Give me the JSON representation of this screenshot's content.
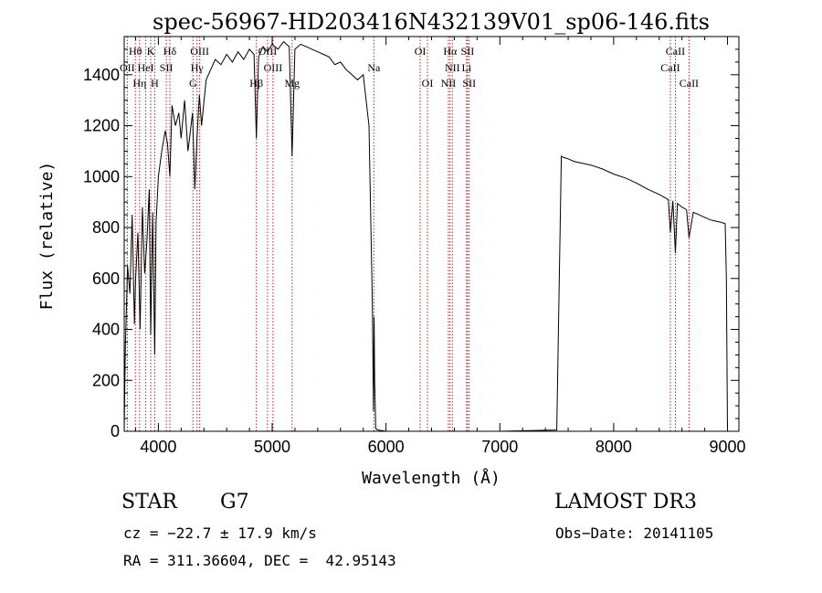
{
  "chart_data": {
    "type": "line",
    "title": "spec-56967-HD203416N432139V01_sp06-146.fits",
    "xlabel": "Wavelength (Å)",
    "ylabel": "Flux (relative)",
    "xlim": [
      3700,
      9100
    ],
    "ylim": [
      0,
      1550
    ],
    "xticks": [
      4000,
      5000,
      6000,
      7000,
      8000,
      9000
    ],
    "yticks": [
      0,
      200,
      400,
      600,
      800,
      1000,
      1200,
      1400
    ],
    "series": [
      {
        "name": "spectrum",
        "x": [
          3700,
          3710,
          3730,
          3750,
          3770,
          3790,
          3800,
          3820,
          3840,
          3860,
          3880,
          3900,
          3920,
          3933,
          3950,
          3968,
          3980,
          4000,
          4030,
          4060,
          4080,
          4101,
          4120,
          4150,
          4180,
          4200,
          4230,
          4260,
          4300,
          4320,
          4340,
          4360,
          4380,
          4420,
          4460,
          4500,
          4550,
          4600,
          4650,
          4700,
          4750,
          4800,
          4840,
          4861,
          4880,
          4920,
          4960,
          5000,
          5050,
          5100,
          5150,
          5175,
          5200,
          5250,
          5300,
          5350,
          5400,
          5450,
          5500,
          5550,
          5600,
          5650,
          5700,
          5750,
          5800,
          5850,
          5880,
          5890,
          5895,
          5900,
          5910,
          5930,
          6000,
          6500,
          7000,
          7500,
          7540,
          7560,
          7600,
          7650,
          7700,
          7800,
          7900,
          8000,
          8100,
          8200,
          8300,
          8400,
          8480,
          8498,
          8520,
          8542,
          8560,
          8600,
          8640,
          8662,
          8700,
          8750,
          8800,
          8850,
          8900,
          8950,
          8980,
          8990,
          9000
        ],
        "y": [
          0,
          320,
          650,
          540,
          850,
          420,
          600,
          780,
          400,
          880,
          620,
          750,
          950,
          380,
          860,
          300,
          820,
          1000,
          1100,
          1180,
          1130,
          1000,
          1280,
          1200,
          1250,
          1150,
          1300,
          1100,
          1250,
          950,
          1160,
          1320,
          1200,
          1380,
          1420,
          1460,
          1440,
          1480,
          1450,
          1490,
          1460,
          1500,
          1480,
          1150,
          1470,
          1510,
          1490,
          1520,
          1500,
          1530,
          1510,
          1080,
          1500,
          1520,
          1510,
          1500,
          1490,
          1480,
          1470,
          1440,
          1450,
          1420,
          1400,
          1380,
          1400,
          1200,
          500,
          80,
          450,
          200,
          10,
          5,
          0,
          0,
          0,
          5,
          1080,
          1075,
          1070,
          1060,
          1055,
          1045,
          1030,
          1010,
          995,
          975,
          950,
          930,
          910,
          780,
          905,
          700,
          895,
          880,
          870,
          760,
          860,
          850,
          840,
          830,
          825,
          820,
          815,
          600,
          0
        ]
      }
    ],
    "line_markers": [
      {
        "label": "Hθ",
        "wave": 3798,
        "row": 0
      },
      {
        "label": "OII",
        "wave": 3727,
        "row": 1
      },
      {
        "label": "Hη",
        "wave": 3835,
        "row": 2
      },
      {
        "label": "HeI",
        "wave": 3889,
        "row": 1
      },
      {
        "label": "K",
        "wave": 3933,
        "row": 0
      },
      {
        "label": "SII",
        "wave": 4070,
        "row": 1
      },
      {
        "label": "H",
        "wave": 3968,
        "row": 2
      },
      {
        "label": "Hδ",
        "wave": 4101,
        "row": 0
      },
      {
        "label": "OIII",
        "wave": 4363,
        "row": 0
      },
      {
        "label": "Hγ",
        "wave": 4340,
        "row": 1
      },
      {
        "label": "G",
        "wave": 4304,
        "row": 2
      },
      {
        "label": "Hβ",
        "wave": 4861,
        "row": 2
      },
      {
        "label": "OIII",
        "wave": 4959,
        "row": 0
      },
      {
        "label": "OIII",
        "wave": 5007,
        "row": 1
      },
      {
        "label": "Mg",
        "wave": 5175,
        "row": 2
      },
      {
        "label": "Na",
        "wave": 5893,
        "row": 1
      },
      {
        "label": "OI",
        "wave": 6300,
        "row": 0
      },
      {
        "label": "OI",
        "wave": 6364,
        "row": 2
      },
      {
        "label": "Hα",
        "wave": 6563,
        "row": 0
      },
      {
        "label": "NII",
        "wave": 6583,
        "row": 1
      },
      {
        "label": "NII",
        "wave": 6548,
        "row": 2
      },
      {
        "label": "SII",
        "wave": 6716,
        "row": 0
      },
      {
        "label": "Li",
        "wave": 6708,
        "row": 1
      },
      {
        "label": "SII",
        "wave": 6731,
        "row": 2
      },
      {
        "label": "CaII",
        "wave": 8498,
        "row": 1
      },
      {
        "label": "CaII",
        "wave": 8542,
        "row": 0
      },
      {
        "label": "CaII",
        "wave": 8662,
        "row": 2
      }
    ]
  },
  "info": {
    "object_type": "STAR",
    "subclass": "G7",
    "survey": "LAMOST DR3",
    "cz": "cz = −22.7 ± 17.9 km/s",
    "obs_date": "Obs−Date: 20141105",
    "coords": "RA = 311.36604, DEC =  42.95143"
  },
  "colors": {
    "spectrum": "#000000",
    "marker_line": "#b22222"
  }
}
